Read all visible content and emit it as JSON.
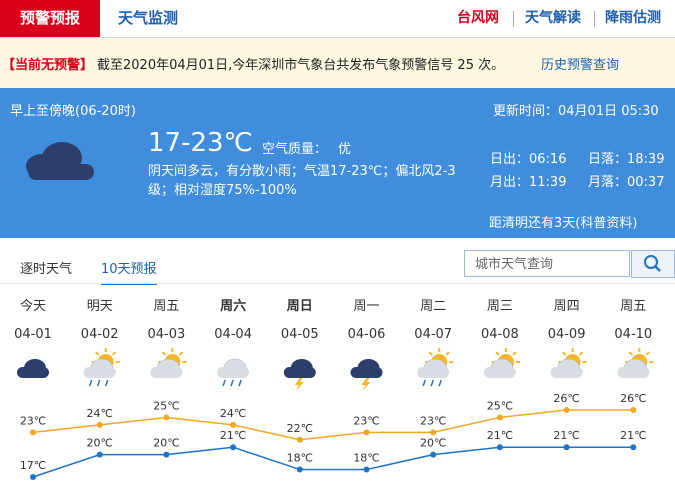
{
  "nav": {
    "active_tab": "预警预报",
    "tab": "天气监测",
    "links": [
      "台风网",
      "天气解读",
      "降雨估测"
    ]
  },
  "alert": {
    "status": "【当前无预警】",
    "text": "截至2020年04月01日,今年深圳市气象台共发布气象预警信号 25 次。",
    "link": "历史预警查询"
  },
  "today": {
    "period": "早上至傍晚(06-20时)",
    "temp": "17-23℃",
    "air_label": "空气质量：",
    "air_value": "优",
    "desc": "阴天间多云，有分散小雨；气温17-23℃；偏北风2-3级；相对湿度75%-100%",
    "update": "更新时间：04月01日 05:30",
    "sunrise": "日出：06:16",
    "sunset": "日落：18:39",
    "moonrise": "月出：11:39",
    "moonset": "月落：00:37",
    "countdown": "距清明还有3天(科普资料)"
  },
  "tabs": [
    "逐时天气",
    "10天预报"
  ],
  "search": {
    "placeholder": "城市天气查询"
  },
  "forecast": {
    "days": [
      {
        "name": "今天",
        "date": "04-01"
      },
      {
        "name": "明天",
        "date": "04-02"
      },
      {
        "name": "周五",
        "date": "04-03"
      },
      {
        "name": "周六",
        "date": "04-04"
      },
      {
        "name": "周日",
        "date": "04-05"
      },
      {
        "name": "周一",
        "date": "04-06"
      },
      {
        "name": "周二",
        "date": "04-07"
      },
      {
        "name": "周三",
        "date": "04-08"
      },
      {
        "name": "周四",
        "date": "04-09"
      },
      {
        "name": "周五",
        "date": "04-10"
      }
    ]
  },
  "chart_data": {
    "type": "line",
    "series": [
      {
        "name": "high",
        "color": "#f5a623",
        "values": [
          23,
          24,
          25,
          24,
          22,
          23,
          23,
          25,
          26,
          26
        ],
        "value_labels": [
          "23℃",
          "24℃",
          "25℃",
          "24℃",
          "22℃",
          "23℃",
          "23℃",
          "25℃",
          "26℃",
          "26℃"
        ]
      },
      {
        "name": "low",
        "color": "#1e73c8",
        "values": [
          17,
          20,
          20,
          21,
          18,
          18,
          20,
          21,
          21,
          21
        ],
        "value_labels": [
          "17℃",
          "20℃",
          "20℃",
          "21℃",
          "18℃",
          "18℃",
          "20℃",
          "21℃",
          "21℃",
          "21℃"
        ]
      }
    ]
  }
}
